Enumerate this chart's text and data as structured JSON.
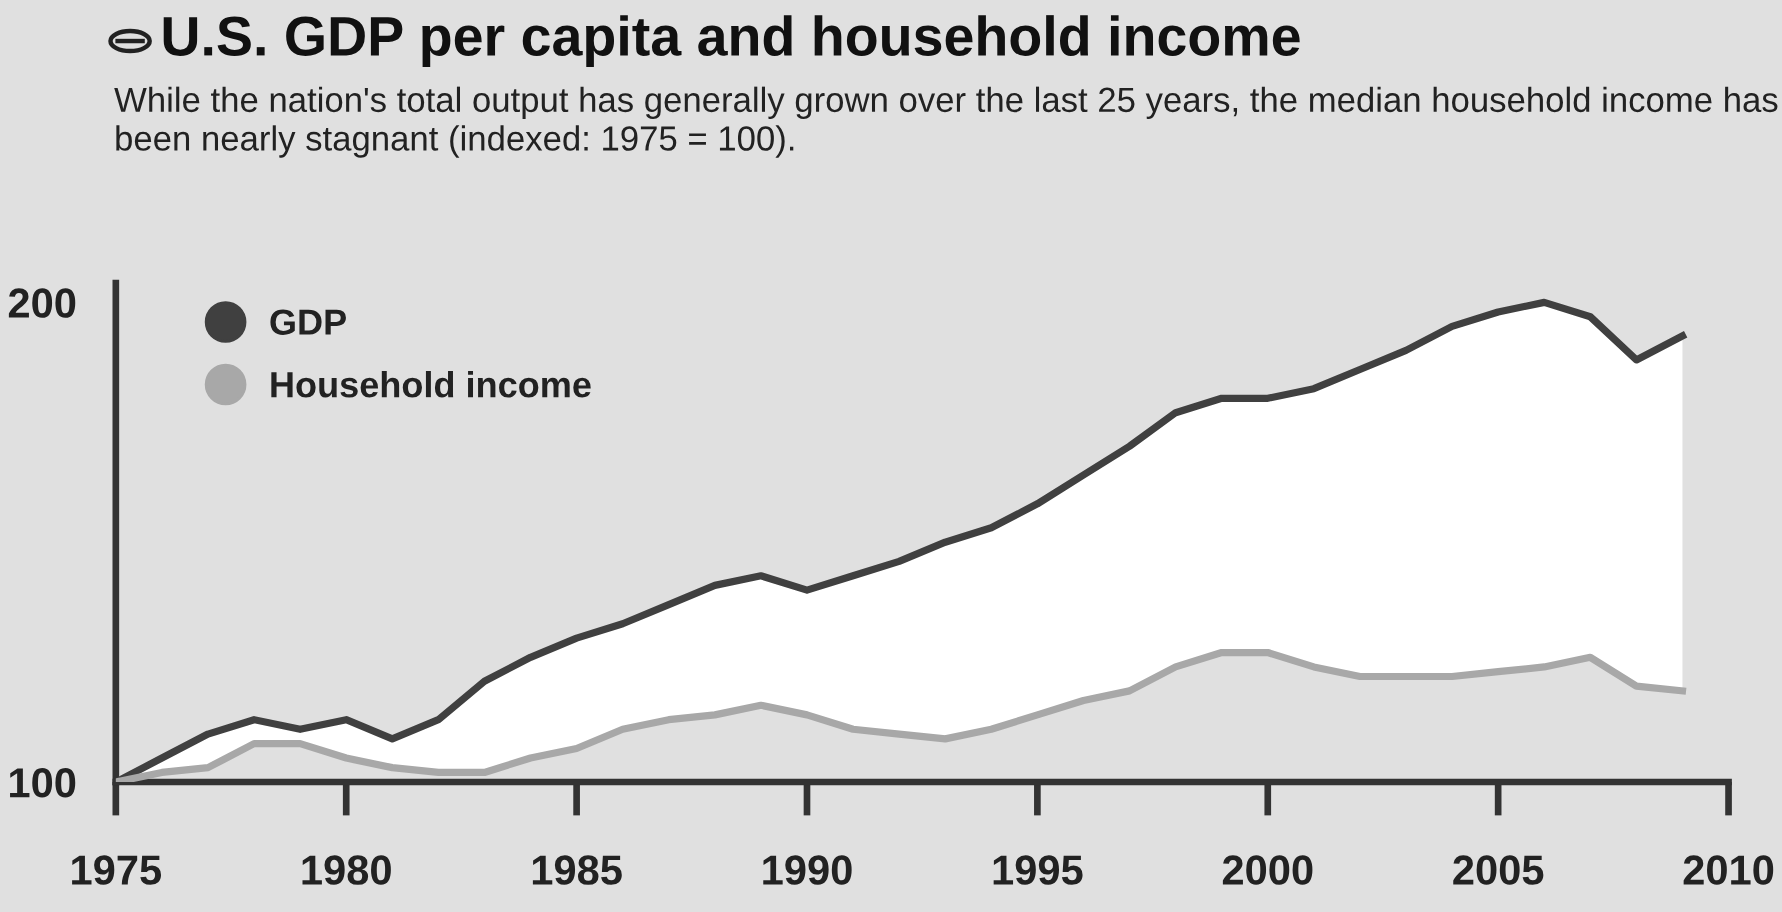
{
  "chart_data": {
    "type": "line",
    "title": "U.S. GDP per capita and household income",
    "subtitle": "While the nation's total output has generally grown over the last 25 years, the median household income has been nearly stagnant (indexed: 1975 = 100).",
    "x": [
      1975,
      1976,
      1977,
      1978,
      1979,
      1980,
      1981,
      1982,
      1983,
      1984,
      1985,
      1986,
      1987,
      1988,
      1989,
      1990,
      1991,
      1992,
      1993,
      1994,
      1995,
      1996,
      1997,
      1998,
      1999,
      2000,
      2001,
      2002,
      2003,
      2004,
      2005,
      2006,
      2007,
      2008,
      2009
    ],
    "series": [
      {
        "name": "GDP",
        "color": "#404040",
        "values": [
          100,
          105,
          110,
          113,
          111,
          113,
          109,
          113,
          121,
          126,
          130,
          133,
          137,
          141,
          143,
          140,
          143,
          146,
          150,
          153,
          158,
          164,
          170,
          177,
          180,
          180,
          182,
          186,
          190,
          195,
          198,
          200,
          197,
          188,
          193
        ]
      },
      {
        "name": "Household income",
        "color": "#a8a8a8",
        "values": [
          100,
          102,
          103,
          108,
          108,
          105,
          103,
          102,
          102,
          105,
          107,
          111,
          113,
          114,
          116,
          114,
          111,
          110,
          109,
          111,
          114,
          117,
          119,
          124,
          127,
          127,
          124,
          122,
          122,
          122,
          123,
          124,
          126,
          120,
          119
        ]
      }
    ],
    "xlim": [
      1975,
      2010
    ],
    "ylim": [
      100,
      204
    ],
    "xticks": [
      1975,
      1980,
      1985,
      1990,
      1995,
      2000,
      2005,
      2010
    ],
    "yticks": [
      100,
      200
    ],
    "legend": "top left",
    "grid": false
  }
}
